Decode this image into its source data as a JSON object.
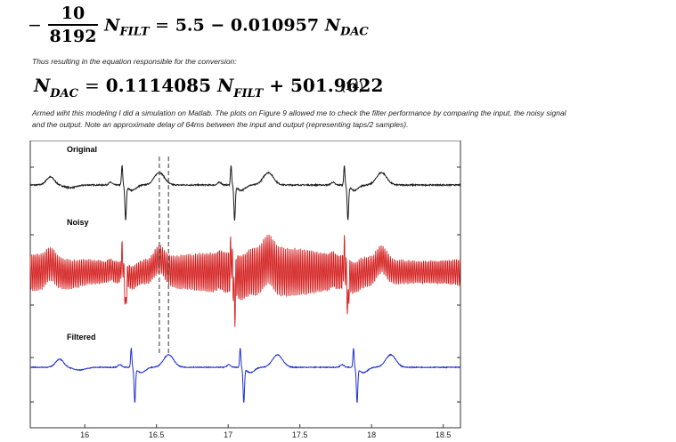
{
  "equation_1": {
    "minus": "−",
    "numerator": "10",
    "denominator": "8192",
    "lhs_symbol": "N",
    "lhs_sub": "FILT",
    "equals": "=",
    "rhs": "5.5 − 0.010957",
    "rhs_symbol": "N",
    "rhs_sub": "DAC"
  },
  "caption_conversion": "Thus resulting in the equation responsible for the conversion:",
  "equation_2": {
    "lhs_symbol": "N",
    "lhs_sub": "DAC",
    "equals": "=",
    "coef": "0.1114085",
    "mid_symbol": "N",
    "mid_sub": "FILT",
    "tail": "+ 501.9622",
    "number": "(14)"
  },
  "paragraph": [
    "Armed wiht this modeling I did a simulation on Matlab.  The plots on Figure 9 allowed me to check the filter performance by comparing the input, the noisy signal",
    "and the output.  Note an approximate delay of 64ms between the input and output (representing taps/2 samples)."
  ],
  "figure": {
    "trace_labels": [
      "Original",
      "Noisy",
      "Filtered"
    ],
    "colors": {
      "original": "#1a1a1a",
      "noisy": "#d42020",
      "filtered": "#1f2fd0",
      "frame": "#333333",
      "marker": "#555555"
    },
    "x_ticks": [
      "16",
      "16.5",
      "17",
      "17.5",
      "18",
      "18.5"
    ],
    "x_tick_values": [
      16,
      16.5,
      17,
      17.5,
      18,
      18.5
    ],
    "x_range": [
      15.62,
      18.62
    ],
    "beats": [
      16.27,
      17.03,
      17.82
    ],
    "filter_delay_s": 0.064
  }
}
